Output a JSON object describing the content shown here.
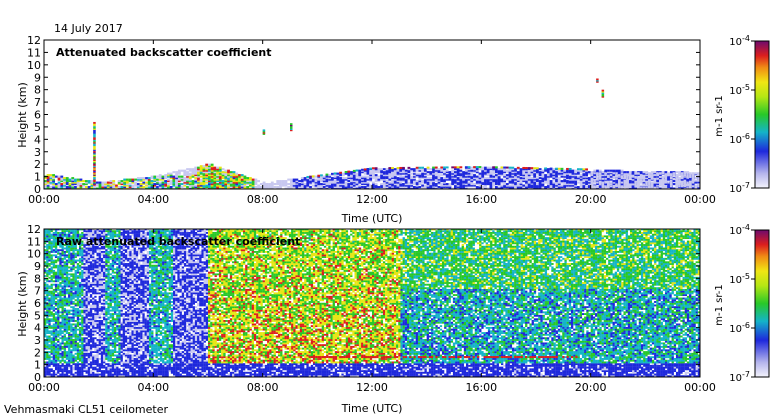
{
  "date": "14 July 2017",
  "footer": "Vehmasmaki CL51 ceilometer",
  "colors": {
    "lowest": "#c8c8f0",
    "blue": "#1e28dc",
    "cyan": "#14b4c8",
    "green": "#28c828",
    "yellow": "#e6e614",
    "red": "#dc1e1e",
    "dark": "#6e0a6e"
  },
  "chart_data": [
    {
      "type": "heatmap",
      "title": "Attenuated backscatter coefficient",
      "xlabel": "Time (UTC)",
      "ylabel": "Height (km)",
      "xlim": [
        0,
        24
      ],
      "ylim": [
        0,
        12
      ],
      "x_ticks": [
        "00:00",
        "04:00",
        "08:00",
        "12:00",
        "16:00",
        "20:00",
        "00:00"
      ],
      "y_ticks": [
        "0",
        "1",
        "2",
        "3",
        "4",
        "5",
        "6",
        "7",
        "8",
        "9",
        "10",
        "11",
        "12"
      ],
      "colorbar": {
        "label": "m-1 sr-1",
        "ticks": [
          "10-7",
          "10-6",
          "10-5",
          "10-4"
        ],
        "log_range": [
          -7,
          -4
        ]
      },
      "features": {
        "boundary_layer_top_km": [
          [
            0,
            1.2
          ],
          [
            2,
            0.5
          ],
          [
            4,
            1.0
          ],
          [
            6,
            2.0
          ],
          [
            8,
            0.5
          ],
          [
            10,
            1.0
          ],
          [
            12,
            1.6
          ],
          [
            16,
            1.7
          ],
          [
            20,
            1.5
          ],
          [
            24,
            1.3
          ]
        ],
        "spike_clouds": [
          {
            "time_h": 1.8,
            "base_km": 0.3,
            "top_km": 5.3
          },
          {
            "time_h": 8.0,
            "base_km": 4.4,
            "top_km": 4.7
          },
          {
            "time_h": 9.0,
            "base_km": 4.7,
            "top_km": 5.2
          },
          {
            "time_h": 20.4,
            "base_km": 7.4,
            "top_km": 7.9
          },
          {
            "time_h": 20.2,
            "base_km": 8.6,
            "top_km": 8.8
          }
        ]
      }
    },
    {
      "type": "heatmap",
      "title": "Raw attenuated backscatter coefficient",
      "xlabel": "Time (UTC)",
      "ylabel": "Height (km)",
      "xlim": [
        0,
        24
      ],
      "ylim": [
        0,
        12
      ],
      "x_ticks": [
        "00:00",
        "04:00",
        "08:00",
        "12:00",
        "16:00",
        "20:00",
        "00:00"
      ],
      "y_ticks": [
        "0",
        "1",
        "2",
        "3",
        "4",
        "5",
        "6",
        "7",
        "8",
        "9",
        "10",
        "11",
        "12"
      ],
      "colorbar": {
        "label": "m-1 sr-1",
        "ticks": [
          "10-7",
          "10-6",
          "10-5",
          "10-4"
        ],
        "log_range": [
          -7,
          -4
        ]
      },
      "features": {
        "noise_regimes": [
          {
            "from_h": 0,
            "to_h": 6,
            "description": "blue/green noise with white gaps"
          },
          {
            "from_h": 6,
            "to_h": 13,
            "description": "yellow/red high noise"
          },
          {
            "from_h": 13,
            "to_h": 24,
            "description": "green to blue noise"
          }
        ]
      }
    }
  ]
}
